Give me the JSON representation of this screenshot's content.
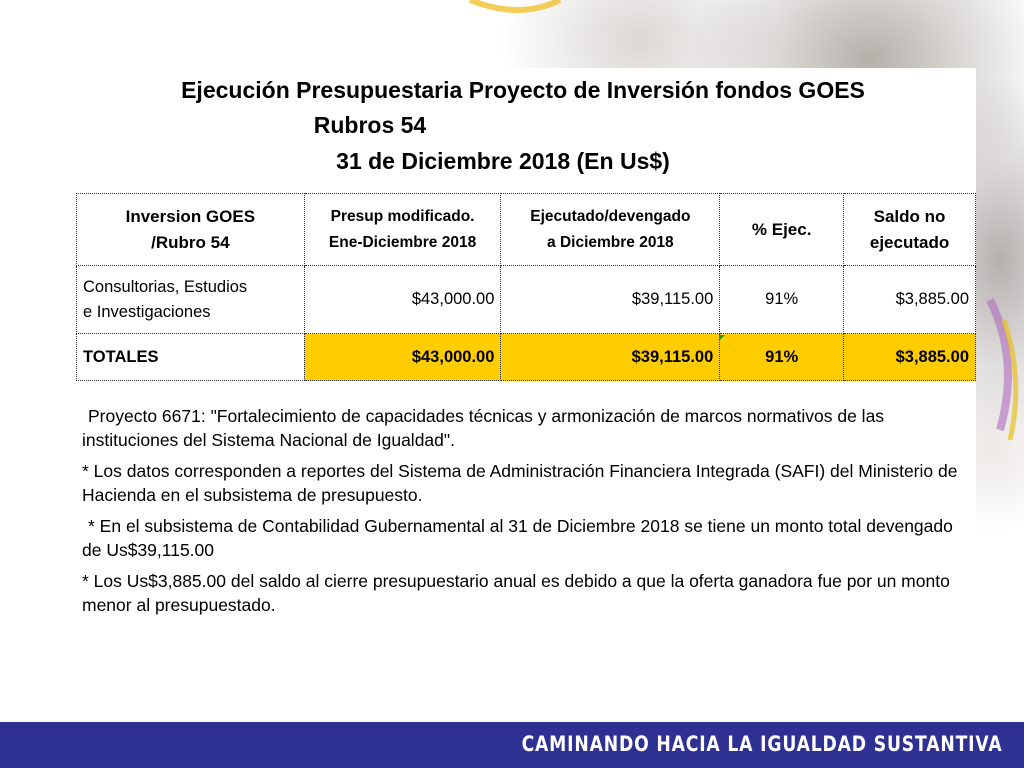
{
  "title": {
    "line1": "Ejecución Presupuestaria Proyecto de Inversión fondos GOES",
    "line2": "Rubros  54",
    "line3": "31 de Diciembre 2018 (En Us$)"
  },
  "table": {
    "headers": [
      {
        "line1": "Inversion GOES",
        "line2": "/Rubro  54"
      },
      {
        "line1": "Presup modificado.",
        "line2": "Ene-Diciembre 2018"
      },
      {
        "line1": "Ejecutado/devengado",
        "line2": "a Diciembre 2018"
      },
      {
        "line1": "% Ejec.",
        "line2": ""
      },
      {
        "line1": "Saldo no",
        "line2": "ejecutado"
      }
    ],
    "row": {
      "label_line1": "Consultorias, Estudios",
      "label_line2": "e Investigaciones",
      "presup": "$43,000.00",
      "ejecutado": "$39,115.00",
      "pct": "91%",
      "saldo": "$3,885.00"
    },
    "totals": {
      "label": "TOTALES",
      "presup": "$43,000.00",
      "ejecutado": "$39,115.00",
      "pct": "91%",
      "saldo": "$3,885.00"
    }
  },
  "notes": [
    "Proyecto 6671: \"Fortalecimiento de capacidades técnicas y armonización de marcos normativos de las instituciones del Sistema Nacional de Igualdad\".",
    "*  Los datos corresponden a reportes del Sistema de Administración Financiera Integrada (SAFI) del Ministerio de Hacienda en el subsistema de presupuesto.",
    "* En el subsistema de Contabilidad Gubernamental al 31 de Diciembre 2018  se tiene un monto total devengado de Us$39,115.00",
    "* Los Us$3,885.00 del saldo al cierre presupuestario anual es debido a que la oferta ganadora fue por un monto menor al presupuestado."
  ],
  "footer": {
    "text": "CAMINANDO HACIA LA IGUALDAD SUSTANTIVA"
  },
  "colors": {
    "highlight": "#ffcc00",
    "footer_bg": "#2e3192",
    "footer_text": "#ffffff"
  }
}
